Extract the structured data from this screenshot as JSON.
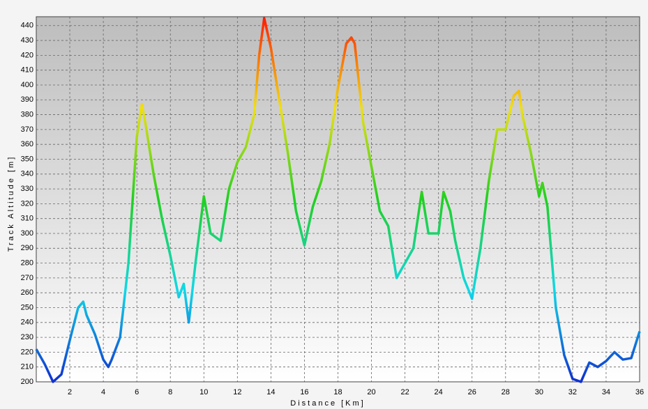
{
  "chart_data": {
    "type": "line",
    "xlabel": "Distance [Km]",
    "ylabel": "Track Altitude [m]",
    "x": [
      0,
      0.5,
      1,
      1.5,
      2,
      2.5,
      2.8,
      3,
      3.5,
      4,
      4.3,
      4.5,
      5,
      5.5,
      6,
      6.3,
      6.5,
      7,
      7.5,
      8,
      8.5,
      8.8,
      9.1,
      9.5,
      10,
      10.4,
      11,
      11.5,
      12,
      12.5,
      13,
      13.3,
      13.6,
      14,
      14.5,
      15,
      15.5,
      16,
      16.5,
      17,
      17.5,
      18,
      18.5,
      18.8,
      19,
      19.5,
      20,
      20.5,
      21,
      21.5,
      22,
      22.5,
      23,
      23.4,
      24,
      24.3,
      24.7,
      25,
      25.5,
      26,
      26.5,
      27,
      27.5,
      28,
      28.5,
      28.8,
      29,
      29.5,
      30,
      30.2,
      30.5,
      31,
      31.5,
      32,
      32.5,
      33,
      33.5,
      34,
      34.5,
      35,
      35.5,
      36
    ],
    "values": [
      222,
      212,
      200,
      205,
      228,
      250,
      254,
      245,
      232,
      215,
      210,
      215,
      230,
      280,
      365,
      387,
      375,
      340,
      310,
      285,
      257,
      266,
      240,
      280,
      325,
      300,
      295,
      330,
      348,
      358,
      380,
      420,
      445,
      425,
      390,
      355,
      315,
      292,
      318,
      335,
      360,
      398,
      428,
      432,
      428,
      375,
      345,
      315,
      305,
      270,
      280,
      290,
      328,
      300,
      300,
      328,
      315,
      295,
      270,
      256,
      290,
      335,
      370,
      370,
      393,
      396,
      380,
      355,
      325,
      334,
      318,
      250,
      218,
      202,
      200,
      213,
      210,
      214,
      220,
      215,
      216,
      234
    ],
    "colors": [
      "#1030d0",
      "#10d8e8",
      "#20d020",
      "#f0e010",
      "#ff1a00"
    ],
    "xlim": [
      0,
      36
    ],
    "ylim": [
      200,
      446
    ],
    "xticks": [
      2,
      4,
      6,
      8,
      10,
      12,
      14,
      16,
      18,
      20,
      22,
      24,
      26,
      28,
      30,
      32,
      34,
      36
    ],
    "yticks": [
      200,
      210,
      220,
      230,
      240,
      250,
      260,
      270,
      280,
      290,
      300,
      310,
      320,
      330,
      340,
      350,
      360,
      370,
      380,
      390,
      400,
      410,
      420,
      430,
      440
    ],
    "grid": true
  }
}
